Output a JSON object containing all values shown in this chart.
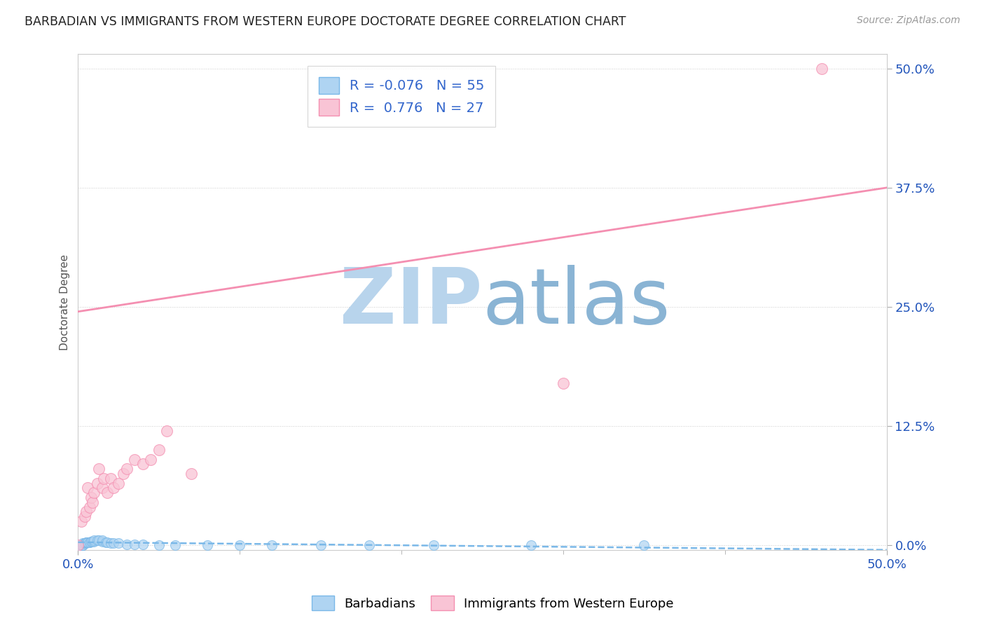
{
  "title": "BARBADIAN VS IMMIGRANTS FROM WESTERN EUROPE DOCTORATE DEGREE CORRELATION CHART",
  "source": "Source: ZipAtlas.com",
  "ylabel": "Doctorate Degree",
  "xlim": [
    0.0,
    0.5
  ],
  "ylim": [
    -0.005,
    0.515
  ],
  "xtick_positions": [
    0.0,
    0.5
  ],
  "xtick_labels": [
    "0.0%",
    "50.0%"
  ],
  "ytick_vals": [
    0.0,
    0.125,
    0.25,
    0.375,
    0.5
  ],
  "ytick_labels": [
    "0.0%",
    "12.5%",
    "25.0%",
    "37.5%",
    "50.0%"
  ],
  "grid_color": "#cccccc",
  "background_color": "#ffffff",
  "blue_R": -0.076,
  "blue_N": 55,
  "pink_R": 0.776,
  "pink_N": 27,
  "blue_color": "#7ab8e8",
  "blue_fill": "#afd4f2",
  "pink_color": "#f48fb1",
  "pink_fill": "#f9c4d5",
  "blue_scatter_x": [
    0.0,
    0.0,
    0.0,
    0.0,
    0.0,
    0.0,
    0.0,
    0.0,
    0.0,
    0.0,
    0.002,
    0.002,
    0.002,
    0.002,
    0.003,
    0.003,
    0.003,
    0.003,
    0.004,
    0.004,
    0.004,
    0.005,
    0.005,
    0.005,
    0.006,
    0.006,
    0.007,
    0.007,
    0.008,
    0.008,
    0.009,
    0.01,
    0.01,
    0.012,
    0.013,
    0.015,
    0.015,
    0.017,
    0.018,
    0.02,
    0.022,
    0.025,
    0.03,
    0.035,
    0.04,
    0.05,
    0.06,
    0.08,
    0.1,
    0.12,
    0.15,
    0.18,
    0.22,
    0.28,
    0.35
  ],
  "blue_scatter_y": [
    0.0,
    0.0,
    0.0,
    0.0,
    0.0,
    0.0,
    0.0,
    0.0,
    0.0,
    0.0,
    0.0,
    0.0,
    0.0,
    0.0,
    0.0,
    0.0,
    0.0,
    0.002,
    0.002,
    0.002,
    0.002,
    0.002,
    0.003,
    0.003,
    0.003,
    0.003,
    0.003,
    0.003,
    0.004,
    0.004,
    0.004,
    0.004,
    0.005,
    0.005,
    0.005,
    0.004,
    0.005,
    0.003,
    0.003,
    0.002,
    0.002,
    0.002,
    0.001,
    0.001,
    0.001,
    0.0,
    0.0,
    0.0,
    0.0,
    0.0,
    0.0,
    0.0,
    0.0,
    0.0,
    0.0
  ],
  "pink_scatter_x": [
    0.0,
    0.002,
    0.004,
    0.005,
    0.006,
    0.007,
    0.008,
    0.009,
    0.01,
    0.012,
    0.013,
    0.015,
    0.016,
    0.018,
    0.02,
    0.022,
    0.025,
    0.028,
    0.03,
    0.035,
    0.04,
    0.045,
    0.05,
    0.055,
    0.07,
    0.3,
    0.46
  ],
  "pink_scatter_y": [
    0.0,
    0.025,
    0.03,
    0.035,
    0.06,
    0.04,
    0.05,
    0.045,
    0.055,
    0.065,
    0.08,
    0.06,
    0.07,
    0.055,
    0.07,
    0.06,
    0.065,
    0.075,
    0.08,
    0.09,
    0.085,
    0.09,
    0.1,
    0.12,
    0.075,
    0.17,
    0.5
  ],
  "pink_line_x0": 0.0,
  "pink_line_y0": 0.245,
  "pink_line_x1": 0.5,
  "pink_line_y1": 0.375,
  "blue_line_x0": 0.0,
  "blue_line_y0": 0.003,
  "blue_line_x1": 0.5,
  "blue_line_y1": -0.005,
  "watermark_ZIP_color": "#b8d4ec",
  "watermark_atlas_color": "#8ab4d4",
  "watermark_fontsize": 80,
  "legend_label_color": "#3366cc"
}
